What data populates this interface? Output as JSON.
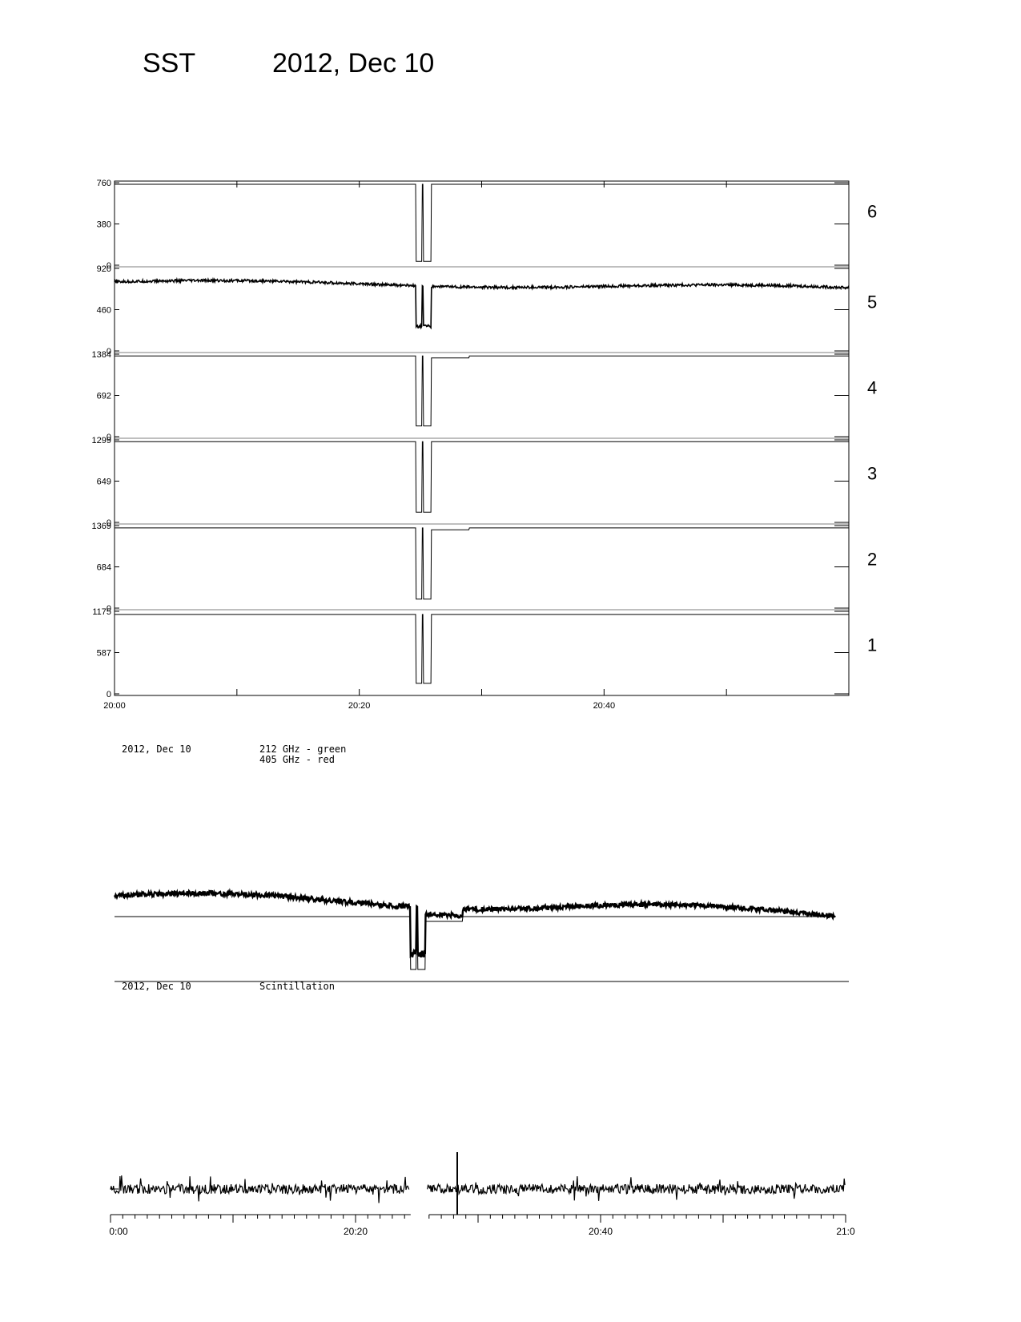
{
  "header": {
    "instrument": "SST",
    "date": "2012, Dec 10"
  },
  "panel1": {
    "x_tick_labels": [
      "20:00",
      "20:20",
      "20:40"
    ],
    "channels": [
      {
        "number": "6",
        "y_ticks": [
          "760",
          "380",
          "0"
        ]
      },
      {
        "number": "5",
        "y_ticks": [
          "920",
          "460",
          "0"
        ]
      },
      {
        "number": "4",
        "y_ticks": [
          "1384",
          "692",
          "0"
        ]
      },
      {
        "number": "3",
        "y_ticks": [
          "1299",
          "649",
          "0"
        ]
      },
      {
        "number": "2",
        "y_ticks": [
          "1369",
          "684",
          "0"
        ]
      },
      {
        "number": "1",
        "y_ticks": [
          "1175",
          "587",
          "0"
        ]
      }
    ]
  },
  "panel2": {
    "date": "2012, Dec 10",
    "legend": [
      "212 GHz - green",
      "405 GHz - red"
    ]
  },
  "panel3": {
    "date": "2012, Dec 10",
    "label": "Scintillation",
    "x_tick_labels": [
      "0:00",
      "20:20",
      "20:40",
      "21:0"
    ]
  },
  "chart_data": [
    {
      "type": "line",
      "title": "",
      "xlabel": "",
      "ylabel": "",
      "x_range": [
        "20:00",
        "21:00"
      ],
      "series": [
        {
          "channel": "6",
          "ylim": [
            0,
            760
          ],
          "level": 745,
          "dip_window": [
            "20:24.5",
            "20:26"
          ],
          "dip_min": 35
        },
        {
          "channel": "5",
          "ylim": [
            0,
            920
          ],
          "level_start": 770,
          "level_end": 700,
          "noise": "high",
          "dip_window": [
            "20:24.5",
            "20:26"
          ],
          "dip_min": 270
        },
        {
          "channel": "4",
          "ylim": [
            0,
            1384
          ],
          "level": 1355,
          "step_down": [
            "20:25.5",
            "20:29"
          ],
          "step_level": 1320,
          "dip_window": [
            "20:24.5",
            "20:26"
          ],
          "dip_min": 180
        },
        {
          "channel": "3",
          "ylim": [
            0,
            1299
          ],
          "level": 1270,
          "dip_window": [
            "20:24.5",
            "20:26"
          ],
          "dip_min": 160
        },
        {
          "channel": "2",
          "ylim": [
            0,
            1369
          ],
          "level": 1330,
          "step_down": [
            "20:25.5",
            "20:29"
          ],
          "step_level": 1300,
          "dip_window": [
            "20:24.5",
            "20:26"
          ],
          "dip_min": 150
        },
        {
          "channel": "1",
          "ylim": [
            0,
            1175
          ],
          "level": 1130,
          "dip_window": [
            "20:24.5",
            "20:26"
          ],
          "dip_min": 150
        }
      ]
    },
    {
      "type": "line",
      "title": "",
      "series": [
        {
          "name": "212 GHz - green",
          "description_level": "upper noisy trace"
        },
        {
          "name": "405 GHz - red",
          "description_level": "lower flat trace"
        }
      ]
    },
    {
      "type": "line",
      "title": "Scintillation",
      "x_range": [
        "20:00",
        "21:00"
      ],
      "gap": [
        "20:24.5",
        "20:26"
      ],
      "spike_at": "20:28.3"
    }
  ]
}
